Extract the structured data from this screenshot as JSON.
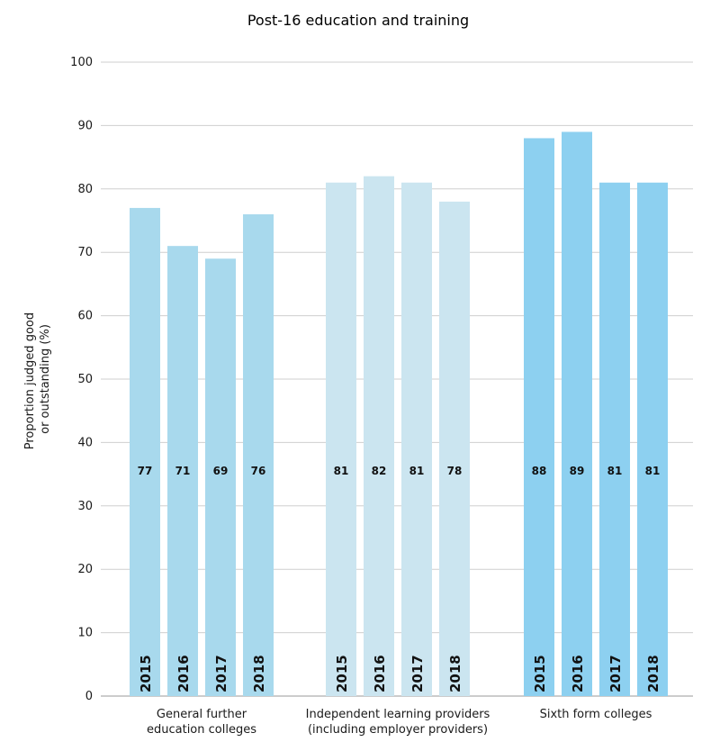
{
  "chart_data": {
    "type": "bar",
    "title": "Post-16 education and training",
    "ylabel_lines": [
      "Proportion judged good",
      "or outstanding (%)"
    ],
    "ylim": [
      0,
      100
    ],
    "yticks": [
      0,
      10,
      20,
      30,
      40,
      50,
      60,
      70,
      80,
      90,
      100
    ],
    "grid": true,
    "groups": [
      {
        "label_lines": [
          "General further",
          "education colleges"
        ],
        "color": "#a8d9ed",
        "bars": [
          {
            "year": "2015",
            "value": 77,
            "value_label": "77"
          },
          {
            "year": "2016",
            "value": 71,
            "value_label": "71"
          },
          {
            "year": "2017",
            "value": 69,
            "value_label": "69"
          },
          {
            "year": "2018",
            "value": 76,
            "value_label": "76"
          }
        ]
      },
      {
        "label_lines": [
          "Independent learning providers",
          "(including employer providers)"
        ],
        "color": "#cbe5f0",
        "bars": [
          {
            "year": "2015",
            "value": 81,
            "value_label": "81"
          },
          {
            "year": "2016",
            "value": 82,
            "value_label": "82"
          },
          {
            "year": "2017",
            "value": 81,
            "value_label": "81"
          },
          {
            "year": "2018",
            "value": 78,
            "value_label": "78"
          }
        ]
      },
      {
        "label_lines": [
          "Sixth form colleges"
        ],
        "color": "#8dd0f0",
        "bars": [
          {
            "year": "2015",
            "value": 88,
            "value_label": "88"
          },
          {
            "year": "2016",
            "value": 89,
            "value_label": "89"
          },
          {
            "year": "2017",
            "value": 81,
            "value_label": "81"
          },
          {
            "year": "2018",
            "value": 81,
            "value_label": "81"
          }
        ]
      }
    ]
  }
}
